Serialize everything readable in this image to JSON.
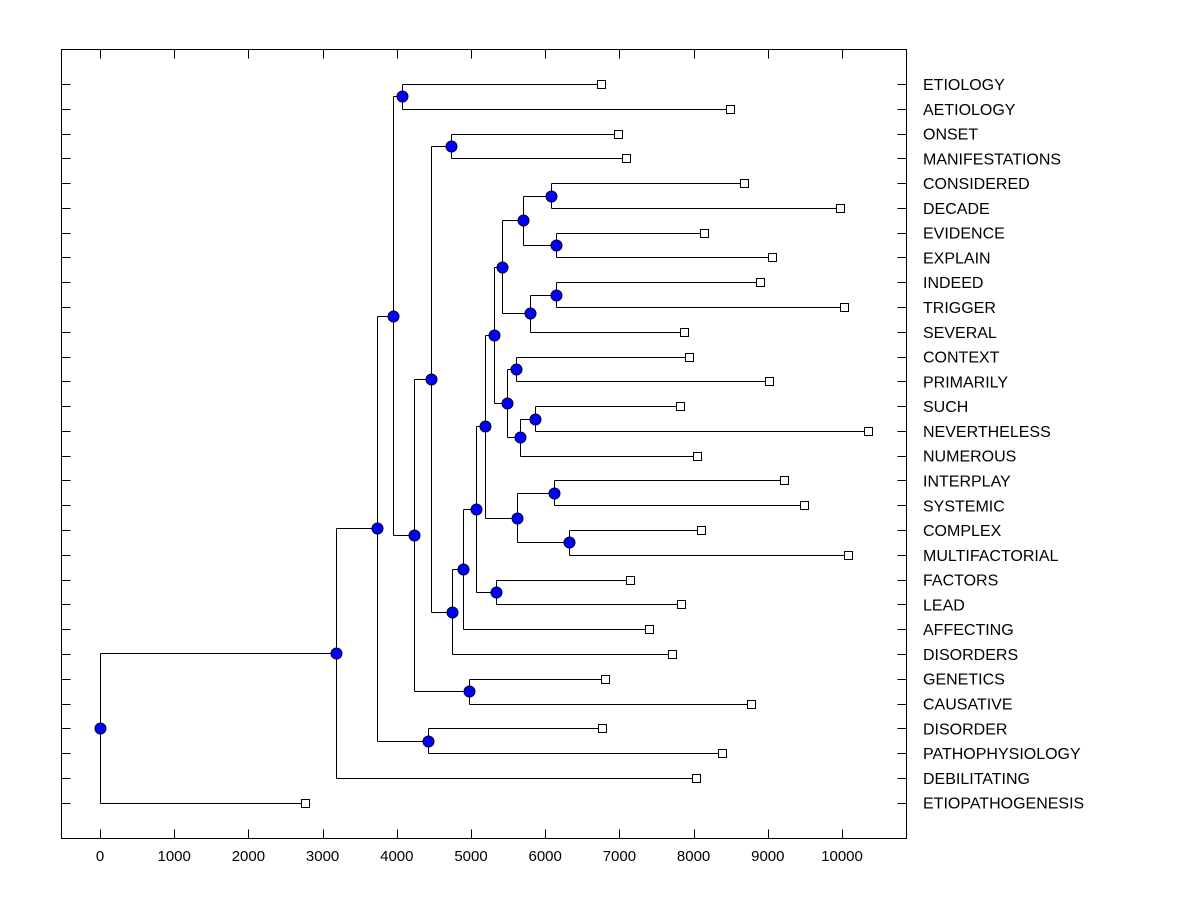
{
  "chart_data": {
    "type": "dendrogram",
    "title": "",
    "xlabel": "",
    "ylabel": "",
    "xlim": [
      -500,
      10900
    ],
    "xticks": [
      0,
      1000,
      2000,
      3000,
      4000,
      5000,
      6000,
      7000,
      8000,
      9000,
      10000
    ],
    "xtick_labels": [
      "0",
      "1000",
      "2000",
      "3000",
      "4000",
      "5000",
      "6000",
      "7000",
      "8000",
      "9000",
      "10000"
    ],
    "grid": false,
    "leaves": [
      {
        "id": "ETIOLOGY",
        "label": "ETIOLOGY",
        "value": 6750
      },
      {
        "id": "AETIOLOGY",
        "label": "AETIOLOGY",
        "value": 8490
      },
      {
        "id": "ONSET",
        "label": "ONSET",
        "value": 6980
      },
      {
        "id": "MANIFESTATIONS",
        "label": "MANIFESTATIONS",
        "value": 7090
      },
      {
        "id": "CONSIDERED",
        "label": "CONSIDERED",
        "value": 8680
      },
      {
        "id": "DECADE",
        "label": "DECADE",
        "value": 9970
      },
      {
        "id": "EVIDENCE",
        "label": "EVIDENCE",
        "value": 8140
      },
      {
        "id": "EXPLAIN",
        "label": "EXPLAIN",
        "value": 9060
      },
      {
        "id": "INDEED",
        "label": "INDEED",
        "value": 8900
      },
      {
        "id": "TRIGGER",
        "label": "TRIGGER",
        "value": 10030
      },
      {
        "id": "SEVERAL",
        "label": "SEVERAL",
        "value": 7870
      },
      {
        "id": "CONTEXT",
        "label": "CONTEXT",
        "value": 7940
      },
      {
        "id": "PRIMARILY",
        "label": "PRIMARILY",
        "value": 9020
      },
      {
        "id": "SUCH",
        "label": "SUCH",
        "value": 7820
      },
      {
        "id": "NEVERTHELESS",
        "label": "NEVERTHELESS",
        "value": 10350
      },
      {
        "id": "NUMEROUS",
        "label": "NUMEROUS",
        "value": 8050
      },
      {
        "id": "INTERPLAY",
        "label": "INTERPLAY",
        "value": 9220
      },
      {
        "id": "SYSTEMIC",
        "label": "SYSTEMIC",
        "value": 9490
      },
      {
        "id": "COMPLEX",
        "label": "COMPLEX",
        "value": 8100
      },
      {
        "id": "MULTIFACTORIAL",
        "label": "MULTIFACTORIAL",
        "value": 10080
      },
      {
        "id": "FACTORS",
        "label": "FACTORS",
        "value": 7140
      },
      {
        "id": "LEAD",
        "label": "LEAD",
        "value": 7830
      },
      {
        "id": "AFFECTING",
        "label": "AFFECTING",
        "value": 7400
      },
      {
        "id": "DISORDERS",
        "label": "DISORDERS",
        "value": 7710
      },
      {
        "id": "GENETICS",
        "label": "GENETICS",
        "value": 6810
      },
      {
        "id": "CAUSATIVE",
        "label": "CAUSATIVE",
        "value": 8770
      },
      {
        "id": "DISORDER",
        "label": "DISORDER",
        "value": 6770
      },
      {
        "id": "PATHOPHYSIOLOGY",
        "label": "PATHOPHYSIOLOGY",
        "value": 8380
      },
      {
        "id": "DEBILITATING",
        "label": "DEBILITATING",
        "value": 8030
      },
      {
        "id": "ETIOPATHOGENESIS",
        "label": "ETIOPATHOGENESIS",
        "value": 2760
      }
    ],
    "nodes": [
      {
        "id": "n_root",
        "value": 0,
        "children": [
          "n_a",
          "ETIOPATHOGENESIS"
        ]
      },
      {
        "id": "n_a",
        "value": 3180,
        "children": [
          "n_b",
          "DEBILITATING"
        ]
      },
      {
        "id": "n_b",
        "value": 3730,
        "children": [
          "n_c",
          "n_i"
        ]
      },
      {
        "id": "n_c",
        "value": 3950,
        "children": [
          "n_d",
          "n_g"
        ]
      },
      {
        "id": "n_d",
        "value": 4070,
        "children": [
          "ETIOLOGY",
          "AETIOLOGY"
        ]
      },
      {
        "id": "n_g",
        "value": 4230,
        "children": [
          "n_e",
          "n_h"
        ]
      },
      {
        "id": "n_e",
        "value": 4460,
        "children": [
          "n_f",
          "n_j"
        ]
      },
      {
        "id": "n_f",
        "value": 4730,
        "children": [
          "ONSET",
          "MANIFESTATIONS"
        ]
      },
      {
        "id": "n_j",
        "value": 4740,
        "children": [
          "n_k",
          "DISORDERS"
        ]
      },
      {
        "id": "n_k",
        "value": 4890,
        "children": [
          "n_l",
          "AFFECTING"
        ]
      },
      {
        "id": "n_l",
        "value": 5070,
        "children": [
          "n_m",
          "n_ab"
        ]
      },
      {
        "id": "n_m",
        "value": 5190,
        "children": [
          "n_n",
          "n_y"
        ]
      },
      {
        "id": "n_n",
        "value": 5310,
        "children": [
          "n_o",
          "n_u"
        ]
      },
      {
        "id": "n_o",
        "value": 5420,
        "children": [
          "n_p",
          "n_s"
        ]
      },
      {
        "id": "n_p",
        "value": 5700,
        "children": [
          "n_q",
          "n_r"
        ]
      },
      {
        "id": "n_q",
        "value": 6080,
        "children": [
          "CONSIDERED",
          "DECADE"
        ]
      },
      {
        "id": "n_r",
        "value": 6150,
        "children": [
          "EVIDENCE",
          "EXPLAIN"
        ]
      },
      {
        "id": "n_s",
        "value": 5800,
        "children": [
          "n_t",
          "SEVERAL"
        ]
      },
      {
        "id": "n_t",
        "value": 6150,
        "children": [
          "INDEED",
          "TRIGGER"
        ]
      },
      {
        "id": "n_u",
        "value": 5490,
        "children": [
          "n_v",
          "n_w"
        ]
      },
      {
        "id": "n_v",
        "value": 5610,
        "children": [
          "CONTEXT",
          "PRIMARILY"
        ]
      },
      {
        "id": "n_w",
        "value": 5660,
        "children": [
          "n_x",
          "NUMEROUS"
        ]
      },
      {
        "id": "n_x",
        "value": 5860,
        "children": [
          "SUCH",
          "NEVERTHELESS"
        ]
      },
      {
        "id": "n_y",
        "value": 5620,
        "children": [
          "n_z",
          "n_aa"
        ]
      },
      {
        "id": "n_z",
        "value": 6120,
        "children": [
          "INTERPLAY",
          "SYSTEMIC"
        ]
      },
      {
        "id": "n_aa",
        "value": 6320,
        "children": [
          "COMPLEX",
          "MULTIFACTORIAL"
        ]
      },
      {
        "id": "n_ab",
        "value": 5340,
        "children": [
          "FACTORS",
          "LEAD"
        ]
      },
      {
        "id": "n_h",
        "value": 4970,
        "children": [
          "GENETICS",
          "CAUSATIVE"
        ]
      },
      {
        "id": "n_i",
        "value": 4420,
        "children": [
          "DISORDER",
          "PATHOPHYSIOLOGY"
        ]
      }
    ],
    "root": "n_root",
    "colors": {
      "node_fill": "#0000ff",
      "leaf_marker_fill": "#ffffff",
      "line": "#000000"
    }
  }
}
